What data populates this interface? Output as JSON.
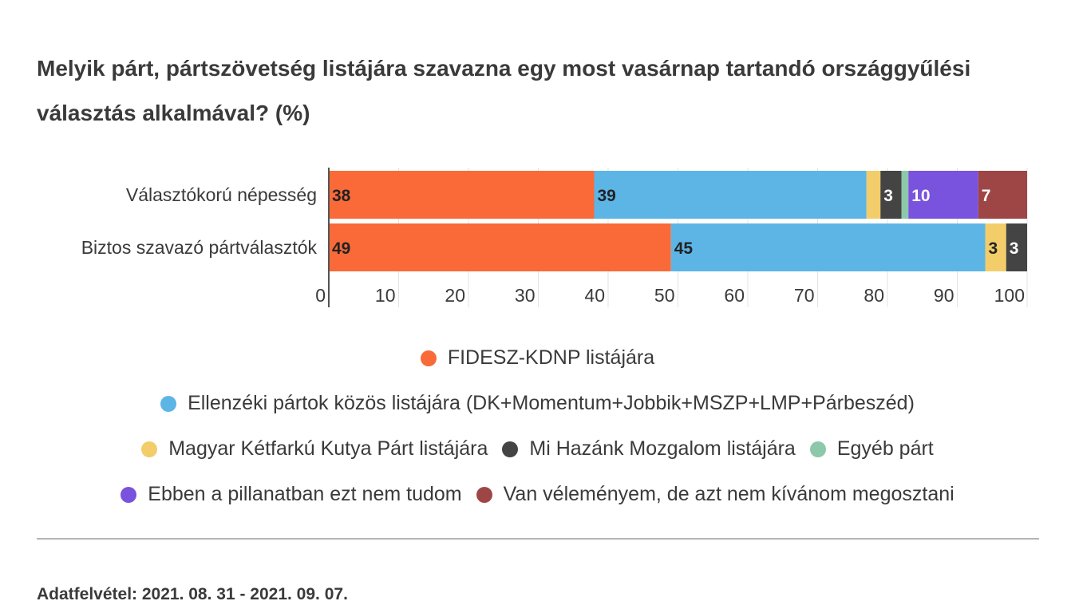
{
  "title": "Melyik párt, pártszövetség listájára szavazna egy most vasárnap tartandó országgyűlési választás alkalmával? (%)",
  "chart_data": {
    "type": "bar",
    "orientation": "horizontal",
    "stacked": true,
    "categories": [
      "Választókorú népesség",
      "Biztos szavazó pártválasztók"
    ],
    "xlim": [
      0,
      100
    ],
    "xticks": [
      0,
      10,
      20,
      30,
      40,
      50,
      60,
      70,
      80,
      90,
      100
    ],
    "grid": true,
    "legend_position": "bottom",
    "series": [
      {
        "name": "FIDESZ-KDNP listájára",
        "color": "#f96a38",
        "values": [
          38,
          49
        ],
        "labels": [
          "38",
          "49"
        ],
        "label_color": "#222222"
      },
      {
        "name": "Ellenzéki pártok közös  listájára (DK+Momentum+Jobbik+MSZP+LMP+Párbeszéd)",
        "color": "#5db5e6",
        "values": [
          39,
          45
        ],
        "labels": [
          "39",
          "45"
        ],
        "label_color": "#222222"
      },
      {
        "name": "Magyar Kétfarkú Kutya Párt listájára",
        "color": "#f2cd6a",
        "values": [
          2,
          3
        ],
        "labels": [
          "",
          "3"
        ],
        "label_color": "#222222"
      },
      {
        "name": "Mi Hazánk Mozgalom listájára",
        "color": "#444444",
        "values": [
          3,
          3
        ],
        "labels": [
          "3",
          "3"
        ],
        "label_color": "#ffffff"
      },
      {
        "name": "Egyéb párt",
        "color": "#8cc8a9",
        "values": [
          1,
          0
        ],
        "labels": [
          "",
          ""
        ],
        "label_color": "#222222"
      },
      {
        "name": "Ebben a pillanatban ezt nem tudom",
        "color": "#7952dd",
        "values": [
          10,
          0
        ],
        "labels": [
          "10",
          ""
        ],
        "label_color": "#ffffff"
      },
      {
        "name": "Van véleményem, de azt nem kívánom megosztani",
        "color": "#9e4646",
        "values": [
          7,
          0
        ],
        "labels": [
          "7",
          ""
        ],
        "label_color": "#ffffff"
      }
    ]
  },
  "legend_rows": [
    [
      0
    ],
    [
      1
    ],
    [
      2,
      3,
      4
    ],
    [
      5,
      6
    ]
  ],
  "source": "Adatfelvétel: 2021. 08. 31 - 2021. 09. 07."
}
